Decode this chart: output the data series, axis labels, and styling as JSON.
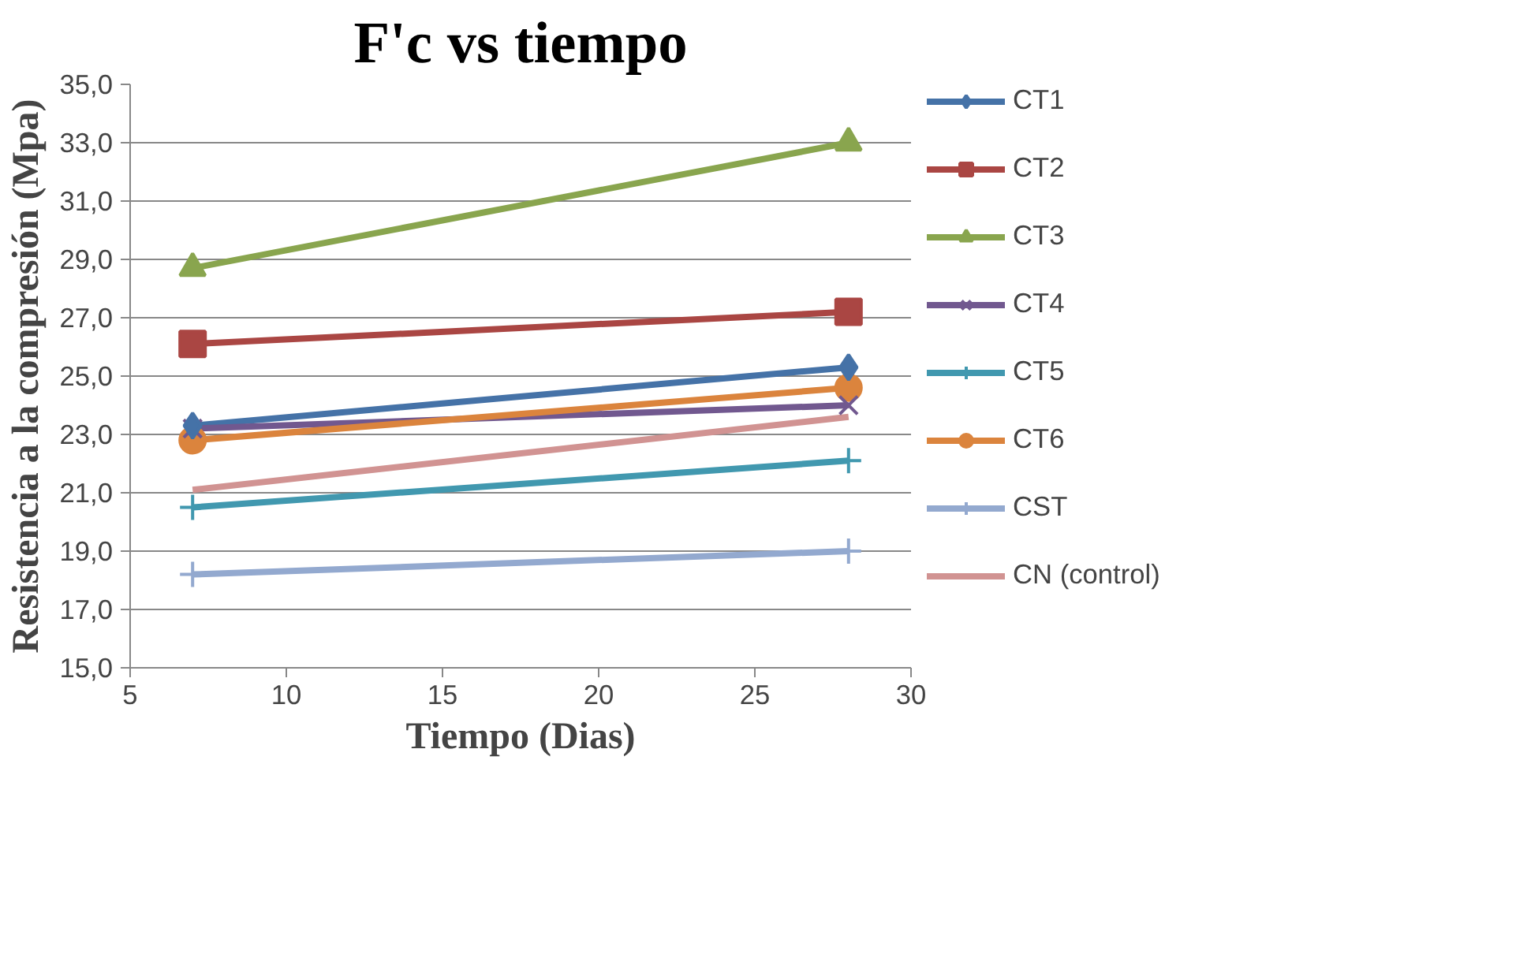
{
  "chart_data": {
    "type": "line",
    "title": "F'c vs tiempo",
    "xlabel": "Tiempo (Dias)",
    "ylabel": "Resistencia a la compresión (Mpa)",
    "x": [
      7,
      28
    ],
    "xlim": [
      5,
      30
    ],
    "xticks": [
      5,
      10,
      15,
      20,
      25,
      30
    ],
    "ylim": [
      15,
      35
    ],
    "yticks": [
      {
        "value": 15,
        "label": "15,0"
      },
      {
        "value": 17,
        "label": "17,0"
      },
      {
        "value": 19,
        "label": "19,0"
      },
      {
        "value": 21,
        "label": "21,0"
      },
      {
        "value": 23,
        "label": "23,0"
      },
      {
        "value": 25,
        "label": "25,0"
      },
      {
        "value": 27,
        "label": "27,0"
      },
      {
        "value": 29,
        "label": "29,0"
      },
      {
        "value": 31,
        "label": "31,0"
      },
      {
        "value": 33,
        "label": "33,0"
      },
      {
        "value": 35,
        "label": "35,0"
      }
    ],
    "grid": "y",
    "legend": "right",
    "series": [
      {
        "name": "CT1",
        "color": "#4572a7",
        "marker": "diamond",
        "values": [
          23.3,
          25.3
        ]
      },
      {
        "name": "CT2",
        "color": "#aa4643",
        "marker": "square",
        "values": [
          26.1,
          27.2
        ]
      },
      {
        "name": "CT3",
        "color": "#89a54e",
        "marker": "triangle",
        "values": [
          28.7,
          33.0
        ]
      },
      {
        "name": "CT4",
        "color": "#71588f",
        "marker": "x",
        "values": [
          23.2,
          24.0
        ]
      },
      {
        "name": "CT5",
        "color": "#4198af",
        "marker": "cross",
        "values": [
          20.5,
          22.1
        ]
      },
      {
        "name": "CT6",
        "color": "#db843d",
        "marker": "circle",
        "values": [
          22.8,
          24.6
        ]
      },
      {
        "name": "CST",
        "color": "#93a9cf",
        "marker": "cross",
        "values": [
          18.2,
          19.0
        ]
      },
      {
        "name": "CN (control)",
        "color": "#d19392",
        "marker": "none",
        "values": [
          21.1,
          23.6
        ]
      }
    ]
  }
}
